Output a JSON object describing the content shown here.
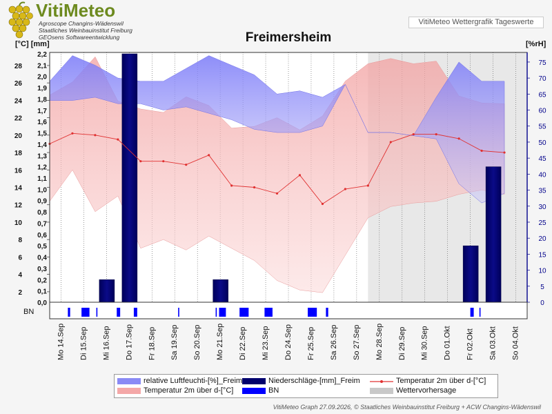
{
  "header": {
    "logo_title": "VitiMeteo",
    "logo_lines": [
      "Agroscope Changins-Wädenswil",
      "Staatliches Weinbauinstitut Freiburg",
      "GEOsens Softwareentwicklung"
    ],
    "app_title": "VitiMeteo Wettergrafik Tageswerte"
  },
  "footer": "VitiMeteo Graph 27.09.2026, © Staatliches Weinbauinstitut Freiburg + ACW Changins-Wädenswil",
  "legend": {
    "items": [
      {
        "label": "relative Luftfeuchti-[%]_Freim",
        "color": "#8a8af5"
      },
      {
        "label": "Niederschläge-[mm]_Freim",
        "color": "#00006e"
      },
      {
        "label": "Temperatur 2m über d-[°C]",
        "color": "#e03030"
      },
      {
        "label": "Temperatur 2m über d-[°C]",
        "color": "#f4a8a8"
      },
      {
        "label": "BN",
        "color": "#0000ff"
      },
      {
        "label": "Wettervorhersage",
        "color": "#c8c8c8"
      }
    ]
  },
  "chart_data": {
    "type": "line",
    "title": "Freimersheim",
    "ylabel_left": "[°C] [mm]",
    "ylabel_right": "[%rH]",
    "categories": [
      "Mo 14.Sep",
      "Di 15.Sep",
      "Mi 16.Sep",
      "Do 17.Sep",
      "Fr 18.Sep",
      "Sa 19.Sep",
      "So 20.Sep",
      "Mo 21.Sep",
      "Di 22.Sep",
      "Mi 23.Sep",
      "Do 24.Sep",
      "Fr 25.Sep",
      "Sa 26.Sep",
      "So 27.Sep",
      "Mo 28.Sep",
      "Di 29.Sep",
      "Mi 30.Sep",
      "Do 01.Okt",
      "Fr 02.Okt",
      "Sa 03.Okt",
      "So 04.Okt"
    ],
    "x_points": [
      13.5,
      14.5,
      15.5,
      16.5,
      17.5,
      18.5,
      19.5,
      20.5,
      21.5,
      22.5,
      23.5,
      24.5,
      25.5,
      26.5,
      27.5,
      28.5,
      29.5,
      30.5,
      31.5,
      32.5,
      33.5
    ],
    "x_range": [
      13.5,
      34.5
    ],
    "forecast_start": 27.5,
    "temperature_ticks": [
      2,
      4,
      6,
      8,
      10,
      12,
      14,
      16,
      18,
      20,
      22,
      24,
      26,
      28
    ],
    "precip_ticks": [
      "0,0",
      "0,1",
      "0,2",
      "0,3",
      "0,4",
      "0,5",
      "0,6",
      "0,7",
      "0,8",
      "0,9",
      "1,0",
      "1,1",
      "1,2",
      "1,3",
      "1,4",
      "1,5",
      "1,6",
      "1,7",
      "1,8",
      "1,9",
      "2,0",
      "2,1",
      "2,2"
    ],
    "humidity_ticks": [
      0,
      5,
      10,
      15,
      20,
      25,
      30,
      35,
      40,
      45,
      50,
      55,
      60,
      65,
      70,
      75
    ],
    "temperature_range": [
      0.8,
      29.5
    ],
    "humidity_range": [
      0,
      78
    ],
    "series": [
      {
        "name": "Temperatur 2m über d-[°C]",
        "kind": "line",
        "axis": "left",
        "color": "#e03030",
        "values": [
          19.0,
          20.2,
          20.0,
          19.5,
          17.0,
          17.0,
          16.6,
          17.7,
          14.2,
          14.0,
          13.3,
          15.4,
          12.1,
          13.8,
          14.2,
          19.2,
          20.1,
          20.1,
          19.6,
          18.2,
          18.0
        ]
      },
      {
        "name": "Temperatur 2m über d-[°C]",
        "kind": "range",
        "axis": "left",
        "color": "#f4a8a8",
        "min": [
          12.4,
          16.0,
          11.2,
          13.0,
          7.0,
          8.0,
          6.8,
          8.4,
          7.0,
          5.6,
          3.3,
          2.2,
          1.9,
          6.2,
          10.5,
          11.8,
          12.2,
          12.4,
          13.2,
          13.7,
          13.2
        ],
        "max": [
          24.6,
          26.1,
          29.0,
          23.9,
          23.0,
          22.6,
          24.4,
          23.4,
          20.8,
          21.0,
          22.0,
          20.6,
          22.2,
          26.2,
          28.2,
          28.8,
          28.2,
          28.5,
          24.5,
          23.7,
          23.6
        ]
      },
      {
        "name": "relative Luftfeuchti-[%]_Freim",
        "kind": "range",
        "axis": "right",
        "color": "#8a8af5",
        "min": [
          63,
          63,
          64,
          62,
          62,
          60,
          61,
          59,
          57,
          54,
          53,
          53,
          55,
          68,
          53,
          53,
          52,
          51,
          37,
          31,
          34
        ],
        "max": [
          69,
          77,
          74,
          70,
          69,
          69,
          73,
          77,
          74,
          71,
          65,
          66,
          64,
          68,
          53,
          53,
          52,
          64,
          75,
          69,
          69
        ]
      },
      {
        "name": "Niederschläge-[mm]_Freim",
        "kind": "bar",
        "axis": "left",
        "color": "#00006e",
        "values": [
          0,
          0,
          0.2,
          2.2,
          0,
          0,
          0,
          0.2,
          0,
          0,
          0,
          0,
          0,
          0,
          0,
          0,
          0,
          0,
          0.5,
          1.2,
          0
        ]
      },
      {
        "name": "BN",
        "kind": "events",
        "color": "#0000ff",
        "spans": [
          [
            14.3,
            14.4
          ],
          [
            14.9,
            15.25
          ],
          [
            15.55,
            15.6
          ],
          [
            16.45,
            16.6
          ],
          [
            17.2,
            17.35
          ],
          [
            19.15,
            19.2
          ],
          [
            20.8,
            20.85
          ],
          [
            20.95,
            21.25
          ],
          [
            21.85,
            22.25
          ],
          [
            22.95,
            23.3
          ],
          [
            24.85,
            25.25
          ],
          [
            25.65,
            25.75
          ],
          [
            32.0,
            32.15
          ],
          [
            32.4,
            32.45
          ]
        ]
      }
    ]
  }
}
